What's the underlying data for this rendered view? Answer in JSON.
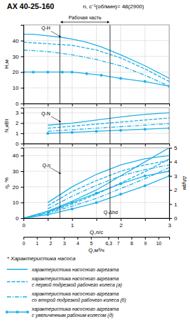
{
  "chart_data": [
    {
      "type": "line",
      "title": "АХ 40-25-160",
      "subtitle": "n, c⁻¹(об/мин)= 48(2900)",
      "caption": "* Характеристика насоса",
      "y_label": "Н,м",
      "color": "#1ab0e8",
      "grid": true,
      "tick_labels": "y",
      "xlim": [
        0,
        3.0
      ],
      "xticks": [
        0,
        0.5,
        1,
        1.5,
        2,
        2.5,
        3
      ],
      "ylim": [
        0,
        50
      ],
      "yticks": [
        0,
        10,
        20,
        30,
        40
      ],
      "working_zone": [
        0.75,
        1.78
      ],
      "working_zone_label": "Рабочая часть",
      "annotations": [
        {
          "text": "Q-H",
          "x": 0.78,
          "y": 42,
          "arrow": true
        }
      ],
      "series": [
        {
          "name": "характеристика насосного агрегата",
          "line_style": "solid",
          "x": [
            0,
            0.2,
            0.5,
            0.8,
            1.0,
            1.3,
            1.6,
            2.0,
            2.5,
            3.0
          ],
          "values": [
            44,
            44,
            43,
            42,
            41,
            39,
            36,
            31,
            24,
            16
          ]
        },
        {
          "name": "характеристика насосного агрегата\nс первой подрезкой рабочего колеса (а)",
          "line_style": "dashed",
          "x": [
            0,
            0.5,
            1.0,
            1.5,
            2.0,
            2.5,
            3.0
          ],
          "values": [
            39,
            38,
            37,
            34,
            29,
            22,
            14
          ]
        },
        {
          "name": "характеристика насосного агрегата\nсо второй подрезкой рабочего колеса (б)",
          "line_style": "dashdot",
          "x": [
            0,
            0.5,
            1.0,
            1.5,
            2.0,
            2.5,
            3.0
          ],
          "values": [
            34,
            33,
            31,
            28,
            24,
            18,
            11
          ]
        },
        {
          "name": "характеристика насосного агрегата\nс увеличенным рабочим колесом (д)",
          "line_style": "solid",
          "marker": "circle",
          "x": [
            0,
            0.2,
            0.5,
            0.8,
            1.0,
            1.3,
            1.6,
            2.0,
            2.5,
            3.0
          ],
          "values": [
            20,
            20,
            20,
            20,
            20,
            19,
            18,
            16,
            14,
            11
          ]
        }
      ]
    },
    {
      "type": "line",
      "y_label": "N,кВт",
      "color": "#1ab0e8",
      "grid": true,
      "tick_labels": "y",
      "xlim": [
        0,
        3.0
      ],
      "xticks": [
        0,
        0.5,
        1,
        1.5,
        2,
        2.5,
        3
      ],
      "ylim": [
        0,
        3.5
      ],
      "yticks": [
        0,
        1,
        2,
        3
      ],
      "working_zone": [
        0.75,
        1.78
      ],
      "annotations": [
        {
          "text": "Q-N",
          "x": 0.78,
          "y": 2.05,
          "arrow": true
        }
      ],
      "series": [
        {
          "line_style": "solid",
          "x": [
            0.5,
            1.0,
            1.5,
            2.0,
            2.5,
            3.0
          ],
          "values": [
            1.8,
            2.0,
            2.3,
            2.6,
            2.85,
            3.0
          ]
        },
        {
          "line_style": "dashed",
          "x": [
            0.5,
            1.0,
            1.5,
            2.0,
            2.5,
            3.0
          ],
          "values": [
            1.5,
            1.7,
            1.9,
            2.1,
            2.3,
            2.5
          ]
        },
        {
          "line_style": "dashdot",
          "x": [
            0.5,
            1.0,
            1.5,
            2.0,
            2.5,
            3.0
          ],
          "values": [
            1.2,
            1.35,
            1.5,
            1.65,
            1.8,
            1.95
          ]
        },
        {
          "line_style": "solid",
          "marker": "circle",
          "x": [
            0.5,
            1.0,
            1.5,
            2.0,
            2.5,
            3.0
          ],
          "values": [
            1.0,
            1.1,
            1.2,
            1.3,
            1.4,
            1.5
          ]
        }
      ]
    },
    {
      "type": "line",
      "x_label": "Q,л/с",
      "y_label": "η, %",
      "y2_label": "Δhдм",
      "color": "#1ab0e8",
      "grid": true,
      "xlim": [
        0,
        3.0
      ],
      "xticks": [
        0,
        {
          "value": 0.5,
          "label": null
        },
        1,
        {
          "value": 1.5,
          "label": null
        },
        2,
        {
          "value": 2.5,
          "label": null
        },
        3
      ],
      "ylim": [
        0,
        45
      ],
      "yticks": [
        0,
        10,
        20,
        30,
        40
      ],
      "y2lim": [
        0,
        5
      ],
      "y2ticks": [
        0,
        1,
        2,
        3,
        4,
        5
      ],
      "x2lim": [
        0,
        10.8
      ],
      "x2ticks": [
        0,
        1,
        2,
        3,
        4,
        5,
        {
          "value": 6.3,
          "label": "6,3"
        },
        7,
        8,
        9,
        10
      ],
      "x2_label": "Q,м³/ч",
      "working_zone": [
        0.75,
        1.78
      ],
      "annotations": [
        {
          "text": "Q-η",
          "x": 0.78,
          "y": 28,
          "arrow": true
        },
        {
          "text": "Q-Δhd",
          "x": 1.65,
          "y": 2.5
        }
      ],
      "series": [
        {
          "line_style": "solid",
          "x": [
            0.5,
            1.0,
            1.5,
            2.0,
            2.5,
            3.0
          ],
          "values": [
            10,
            20,
            28,
            34,
            38,
            40
          ]
        },
        {
          "line_style": "dashed",
          "x": [
            0.5,
            1.0,
            1.5,
            2.0,
            2.5,
            3.0
          ],
          "values": [
            8,
            17,
            24,
            30,
            34,
            37
          ]
        },
        {
          "line_style": "dashdot",
          "x": [
            0.5,
            1.0,
            1.5,
            2.0,
            2.5,
            3.0
          ],
          "values": [
            6,
            14,
            21,
            27,
            31,
            34
          ]
        },
        {
          "line_style": "solid",
          "marker": "circle",
          "x": [
            0.5,
            1.0,
            1.5,
            2.0,
            2.5,
            3.0
          ],
          "values": [
            4,
            10,
            16,
            22,
            27,
            30
          ]
        },
        {
          "axis": "y2",
          "line_style": "solid",
          "x": [
            0,
            0.5,
            1.0,
            1.5,
            2.0,
            2.5,
            3.0
          ],
          "values": [
            0,
            0.5,
            1.2,
            2.0,
            3.0,
            4.0,
            5.0
          ]
        },
        {
          "axis": "y2",
          "line_style": "dashed",
          "x": [
            0,
            0.5,
            1.0,
            1.5,
            2.0,
            2.5,
            3.0
          ],
          "values": [
            0,
            0.4,
            1.0,
            1.7,
            2.5,
            3.3,
            4.2
          ]
        },
        {
          "axis": "y2",
          "line_style": "dashdot",
          "x": [
            0,
            0.5,
            1.0,
            1.5,
            2.0,
            2.5,
            3.0
          ],
          "values": [
            0,
            0.35,
            0.85,
            1.4,
            2.1,
            2.8,
            3.6
          ]
        },
        {
          "axis": "y2",
          "line_style": "solid",
          "marker": "circle",
          "x": [
            0,
            0.5,
            1.0,
            1.5,
            2.0,
            2.5,
            3.0
          ],
          "values": [
            0,
            0.25,
            0.65,
            1.1,
            1.7,
            2.3,
            3.0
          ]
        }
      ]
    }
  ]
}
